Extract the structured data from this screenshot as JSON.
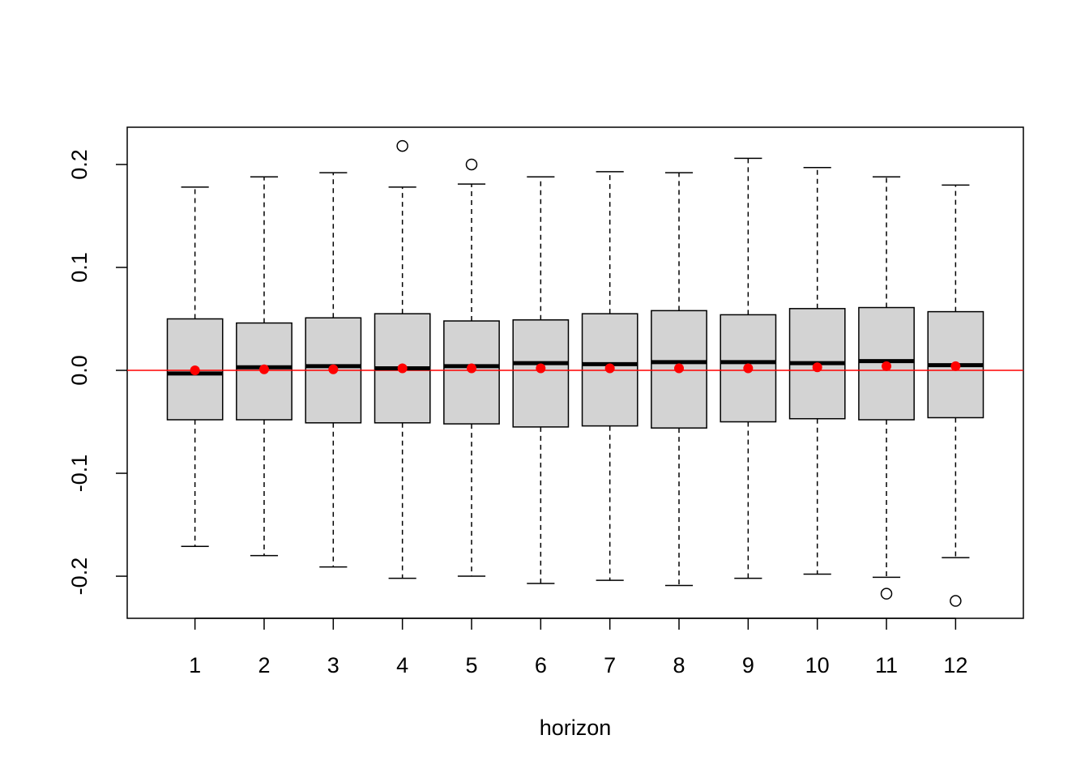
{
  "chart_data": {
    "type": "boxplot",
    "x_label": "horizon",
    "categories": [
      "1",
      "2",
      "3",
      "4",
      "5",
      "6",
      "7",
      "8",
      "9",
      "10",
      "11",
      "12"
    ],
    "boxes": [
      {
        "whisker_low": -0.171,
        "q1": -0.048,
        "median": -0.003,
        "q3": 0.05,
        "whisker_high": 0.178,
        "mean": 0.0,
        "outliers": []
      },
      {
        "whisker_low": -0.18,
        "q1": -0.048,
        "median": 0.003,
        "q3": 0.046,
        "whisker_high": 0.188,
        "mean": 0.001,
        "outliers": []
      },
      {
        "whisker_low": -0.191,
        "q1": -0.051,
        "median": 0.004,
        "q3": 0.051,
        "whisker_high": 0.192,
        "mean": 0.001,
        "outliers": []
      },
      {
        "whisker_low": -0.202,
        "q1": -0.051,
        "median": 0.002,
        "q3": 0.055,
        "whisker_high": 0.178,
        "mean": 0.002,
        "outliers": [
          0.218
        ]
      },
      {
        "whisker_low": -0.2,
        "q1": -0.052,
        "median": 0.004,
        "q3": 0.048,
        "whisker_high": 0.181,
        "mean": 0.002,
        "outliers": [
          0.2
        ]
      },
      {
        "whisker_low": -0.207,
        "q1": -0.055,
        "median": 0.007,
        "q3": 0.049,
        "whisker_high": 0.188,
        "mean": 0.002,
        "outliers": []
      },
      {
        "whisker_low": -0.204,
        "q1": -0.054,
        "median": 0.006,
        "q3": 0.055,
        "whisker_high": 0.193,
        "mean": 0.002,
        "outliers": []
      },
      {
        "whisker_low": -0.209,
        "q1": -0.056,
        "median": 0.008,
        "q3": 0.058,
        "whisker_high": 0.192,
        "mean": 0.002,
        "outliers": []
      },
      {
        "whisker_low": -0.202,
        "q1": -0.05,
        "median": 0.008,
        "q3": 0.054,
        "whisker_high": 0.206,
        "mean": 0.002,
        "outliers": []
      },
      {
        "whisker_low": -0.198,
        "q1": -0.047,
        "median": 0.007,
        "q3": 0.06,
        "whisker_high": 0.197,
        "mean": 0.003,
        "outliers": []
      },
      {
        "whisker_low": -0.201,
        "q1": -0.048,
        "median": 0.009,
        "q3": 0.061,
        "whisker_high": 0.188,
        "mean": 0.004,
        "outliers": [
          -0.217
        ]
      },
      {
        "whisker_low": -0.182,
        "q1": -0.046,
        "median": 0.005,
        "q3": 0.057,
        "whisker_high": 0.18,
        "mean": 0.004,
        "outliers": [
          -0.224
        ]
      }
    ],
    "box_color": "#d3d3d3",
    "mean_color": "#ff0000",
    "hline": {
      "value": 0,
      "color": "#ff0000"
    },
    "ylim": [
      -0.2409,
      0.2362
    ],
    "yticks": [
      -0.2,
      -0.1,
      {
        "value": 0,
        "label": "0.0"
      },
      0.1,
      0.2
    ]
  }
}
